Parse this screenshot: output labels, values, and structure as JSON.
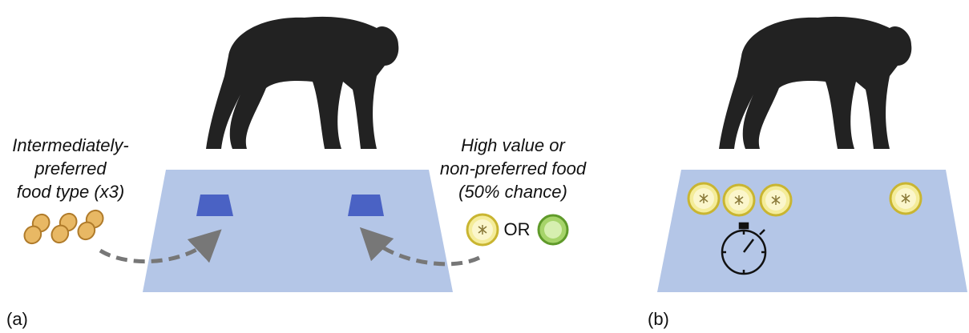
{
  "panels": [
    {
      "label": "(a)",
      "left_note": {
        "lines": [
          "Intermediately-",
          "preferred",
          "food type (x3)"
        ]
      },
      "right_note": {
        "lines": [
          "High value or",
          "non-preferred food",
          "(50% chance)"
        ]
      },
      "or_text": "OR"
    },
    {
      "label": "(b)"
    }
  ]
}
